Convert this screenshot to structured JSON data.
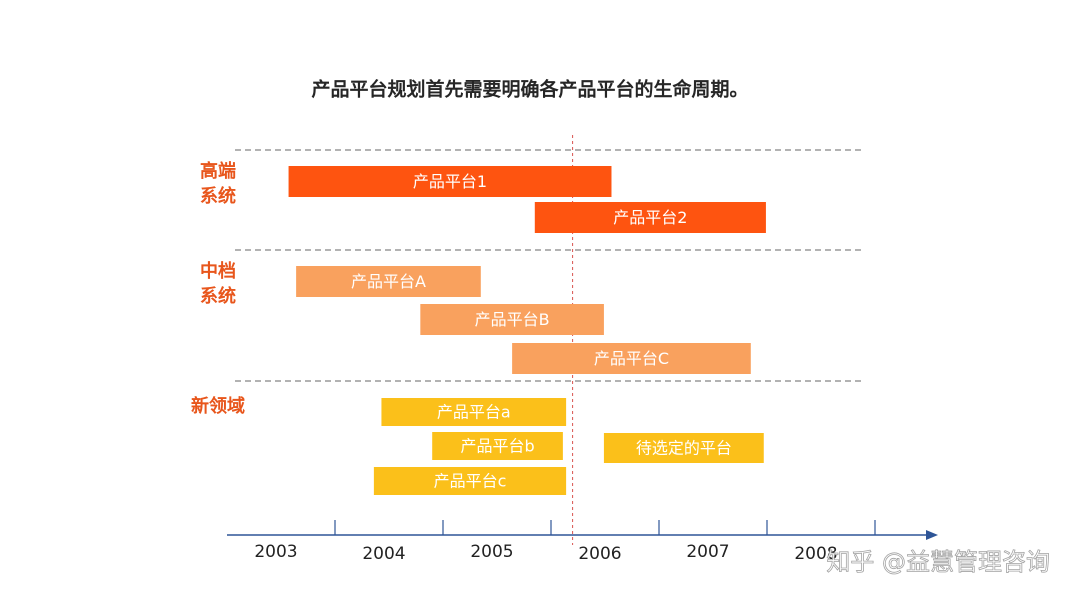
{
  "chart_data": {
    "type": "gantt",
    "title": "产品平台规划首先需要明确各产品平台的生命周期。",
    "xlim": [
      2003,
      2009.5
    ],
    "xticks": [
      2004,
      2005,
      2006,
      2007,
      2008,
      2009
    ],
    "year_labels": [
      "2003",
      "2004",
      "2005",
      "2006",
      "2007",
      "2008"
    ],
    "marker": 2006.2,
    "groups": [
      {
        "name_lines": [
          "高端",
          "系统"
        ],
        "color": "#fe5410",
        "bars": [
          {
            "name": "产品平台1",
            "start": 2003.57,
            "end": 2006.56
          },
          {
            "name": "产品平台2",
            "start": 2005.85,
            "end": 2007.99
          }
        ]
      },
      {
        "name_lines": [
          "中档",
          "系统"
        ],
        "color": "#f9a15e",
        "bars": [
          {
            "name": "产品平台A",
            "start": 2003.64,
            "end": 2005.35
          },
          {
            "name": "产品平台B",
            "start": 2004.79,
            "end": 2006.49
          },
          {
            "name": "产品平台C",
            "start": 2005.64,
            "end": 2007.85
          }
        ]
      },
      {
        "name_lines": [
          "新领域"
        ],
        "color": "#fbc01a",
        "bars": [
          {
            "name": "产品平台a",
            "start": 2004.43,
            "end": 2006.14
          },
          {
            "name": "产品平台b",
            "start": 2004.9,
            "end": 2006.11
          },
          {
            "name": "产品平台c",
            "start": 2004.36,
            "end": 2006.14
          },
          {
            "name": "待选定的平台",
            "start": 2006.49,
            "end": 2007.97
          }
        ]
      }
    ]
  },
  "watermark": "知乎 @益慧管理咨询"
}
